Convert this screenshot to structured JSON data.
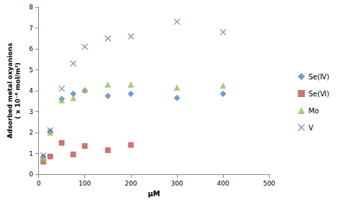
{
  "chart_data": {
    "type": "scatter",
    "x_label": "μM",
    "y_label": "Adsorbed metal oxyanions\n( x 10⁻⁶ mol/m²)",
    "xlim": [
      0,
      500
    ],
    "xticks": [
      0,
      100,
      200,
      300,
      400,
      500
    ],
    "ylim": [
      0,
      8
    ],
    "yticks": [
      0,
      1,
      2,
      3,
      4,
      5,
      6,
      7,
      8
    ],
    "grid": false,
    "legend": "right",
    "series": [
      {
        "name": "Se(Ⅳ)",
        "color": "#4F81BD",
        "marker": "diamond",
        "x": [
          10,
          25,
          50,
          75,
          100,
          150,
          200,
          300,
          400
        ],
        "values": [
          0.85,
          2.05,
          3.6,
          3.85,
          4.0,
          3.75,
          3.85,
          3.65,
          3.85
        ]
      },
      {
        "name": "Se(Ⅵ)",
        "color": "#C0504D",
        "marker": "square",
        "x": [
          10,
          25,
          50,
          75,
          100,
          150,
          200
        ],
        "values": [
          0.6,
          0.85,
          1.5,
          0.95,
          1.35,
          1.15,
          1.4
        ]
      },
      {
        "name": "Mo",
        "color": "#9BBB59",
        "marker": "triangle",
        "x": [
          10,
          25,
          50,
          75,
          100,
          150,
          200,
          300,
          400
        ],
        "values": [
          0.75,
          2.0,
          3.55,
          3.65,
          4.05,
          4.3,
          4.3,
          4.15,
          4.25
        ]
      },
      {
        "name": "V",
        "color": "#8064A2",
        "marker": "x",
        "x": [
          10,
          25,
          50,
          75,
          100,
          150,
          200,
          300,
          400
        ],
        "values": [
          0.9,
          2.1,
          4.1,
          5.3,
          6.1,
          6.5,
          6.6,
          7.3,
          6.8
        ]
      }
    ]
  }
}
